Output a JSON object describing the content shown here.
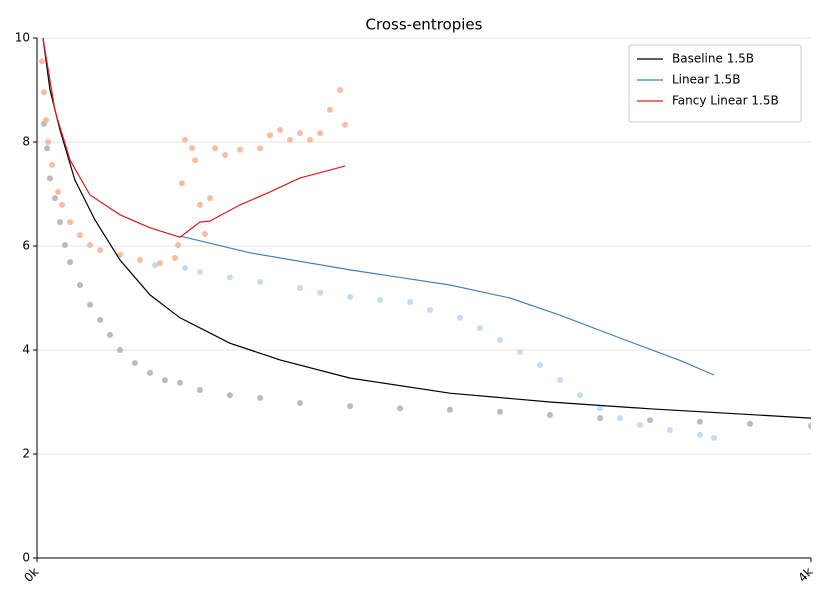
{
  "chart_data": {
    "type": "line",
    "title": "Cross-entropies",
    "xlim": [
      0,
      4000
    ],
    "xticks": [
      {
        "value": 0,
        "label": "0k"
      },
      {
        "value": 4000,
        "label": "4k"
      }
    ],
    "ylim": [
      0,
      10
    ],
    "yticks": [
      0,
      2,
      4,
      6,
      8,
      10
    ],
    "grid": true,
    "legend": "upper right",
    "series": [
      {
        "type": "scatter",
        "color": "#bbbbbb",
        "x": [
          36,
          52,
          67,
          93,
          119,
          145,
          171,
          222,
          274,
          326,
          377,
          429,
          506,
          584,
          661,
          739,
          842,
          997,
          1153,
          1359,
          1618,
          1876,
          2134,
          2393,
          2651,
          2910,
          3168,
          3426,
          3685,
          4000
        ],
        "values": [
          8.35,
          7.88,
          7.3,
          6.92,
          6.46,
          6.02,
          5.69,
          5.25,
          4.87,
          4.58,
          4.29,
          4.0,
          3.75,
          3.56,
          3.42,
          3.37,
          3.23,
          3.13,
          3.08,
          2.98,
          2.92,
          2.88,
          2.85,
          2.81,
          2.75,
          2.69,
          2.65,
          2.62,
          2.58,
          2.54
        ]
      },
      {
        "type": "scatter",
        "color": "#c6dbef",
        "x": [
          610,
          765,
          842,
          997,
          1153,
          1359,
          1463,
          1618,
          1773,
          1928,
          2031,
          2186,
          2289,
          2393,
          2496,
          2599,
          2703,
          2806,
          2910,
          3013,
          3116,
          3271,
          3426,
          3499
        ],
        "values": [
          5.63,
          5.58,
          5.5,
          5.4,
          5.31,
          5.19,
          5.1,
          5.02,
          4.96,
          4.92,
          4.77,
          4.62,
          4.42,
          4.19,
          3.96,
          3.71,
          3.42,
          3.13,
          2.88,
          2.69,
          2.56,
          2.46,
          2.37,
          2.31
        ]
      },
      {
        "type": "scatter",
        "color": "#fcbba1",
        "x": [
          26,
          36,
          47,
          57,
          78,
          109,
          129,
          171,
          222,
          274,
          326,
          429,
          532,
          636,
          713,
          729,
          749,
          765,
          801,
          817,
          842,
          868,
          894,
          920,
          972,
          1049,
          1153,
          1204,
          1256,
          1307,
          1359,
          1411,
          1463,
          1514,
          1566,
          1592
        ],
        "values": [
          9.55,
          8.96,
          8.42,
          8.0,
          7.56,
          7.04,
          6.79,
          6.46,
          6.21,
          6.02,
          5.92,
          5.83,
          5.73,
          5.67,
          5.77,
          6.02,
          7.21,
          8.04,
          7.88,
          7.65,
          6.79,
          6.23,
          6.92,
          7.88,
          7.75,
          7.85,
          7.88,
          8.13,
          8.23,
          8.04,
          8.17,
          8.04,
          8.17,
          8.62,
          9.0,
          8.33
        ]
      },
      {
        "name": "Baseline 1.5B",
        "color": "#000000",
        "x": [
          31,
          67,
          119,
          196,
          300,
          429,
          584,
          739,
          997,
          1256,
          1618,
          2134,
          2651,
          3168,
          4000
        ],
        "values": [
          10,
          9.0,
          8.23,
          7.27,
          6.5,
          5.73,
          5.06,
          4.62,
          4.13,
          3.81,
          3.46,
          3.17,
          3.0,
          2.87,
          2.69
        ]
      },
      {
        "name": "Linear 1.5B",
        "color": "#4682b4",
        "x": [
          739,
          1101,
          1618,
          2134,
          2444,
          2703,
          3013,
          3323,
          3499
        ],
        "values": [
          6.19,
          5.87,
          5.54,
          5.25,
          5.0,
          4.67,
          4.23,
          3.8,
          3.52
        ]
      },
      {
        "name": "Fancy Linear 1.5B",
        "color": "#e31a1c",
        "x": [
          31,
          93,
          171,
          274,
          429,
          584,
          739,
          842,
          894,
          1049,
          1204,
          1359,
          1514,
          1592
        ],
        "values": [
          10,
          8.6,
          7.65,
          6.98,
          6.6,
          6.35,
          6.17,
          6.46,
          6.48,
          6.79,
          7.04,
          7.31,
          7.46,
          7.54
        ]
      }
    ]
  }
}
